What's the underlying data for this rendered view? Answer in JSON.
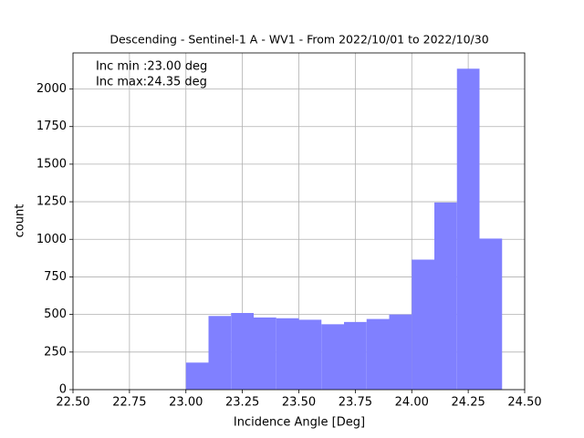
{
  "chart_data": {
    "type": "histogram",
    "title": "Descending - Sentinel-1 A - WV1 - From 2022/10/01 to 2022/10/30",
    "x_label": "Incidence Angle [Deg]",
    "y_label": "count",
    "annotations": [
      "Inc min :23.00 deg",
      "Inc max:24.35 deg"
    ],
    "bins": [
      23.0,
      23.1,
      23.2,
      23.3,
      23.4,
      23.5,
      23.6,
      23.7,
      23.8,
      23.9,
      24.0,
      24.1,
      24.2,
      24.3,
      24.4
    ],
    "values": [
      180,
      490,
      510,
      480,
      475,
      465,
      435,
      450,
      470,
      500,
      865,
      1245,
      2135,
      1005
    ],
    "color": "#8080ff",
    "xlim": [
      22.5,
      24.5
    ],
    "xticks": [
      {
        "value": 22.5,
        "label": "22.50"
      },
      {
        "value": 22.75,
        "label": "22.75"
      },
      {
        "value": 23.0,
        "label": "23.00"
      },
      {
        "value": 23.25,
        "label": "23.25"
      },
      {
        "value": 23.5,
        "label": "23.50"
      },
      {
        "value": 23.75,
        "label": "23.75"
      },
      {
        "value": 24.0,
        "label": "24.00"
      },
      {
        "value": 24.25,
        "label": "24.25"
      },
      {
        "value": 24.5,
        "label": "24.50"
      }
    ],
    "ylim": [
      0,
      2240
    ],
    "yticks": [
      0,
      250,
      500,
      750,
      1000,
      1250,
      1500,
      1750,
      2000
    ],
    "grid": true
  }
}
